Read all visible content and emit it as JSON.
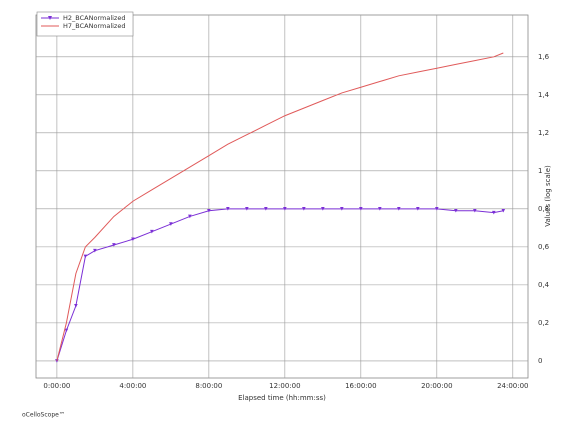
{
  "chart_data": {
    "type": "line",
    "xlabel": "Elapsed time (hh:mm:ss)",
    "ylabel": "Values (log scale)",
    "footer": "oCelloScope™",
    "x": [
      0,
      0.5,
      1,
      1.5,
      2,
      3,
      4,
      5,
      6,
      7,
      8,
      9,
      10,
      11,
      12,
      13,
      14,
      15,
      16,
      17,
      18,
      19,
      20,
      21,
      22,
      23,
      23.5
    ],
    "series": [
      {
        "name": "H2_BCANormalized",
        "color": "#7b2fd6",
        "marker": "triangle-down",
        "values": [
          0,
          0.16,
          0.29,
          0.55,
          0.58,
          0.61,
          0.64,
          0.68,
          0.72,
          0.76,
          0.79,
          0.8,
          0.8,
          0.8,
          0.8,
          0.8,
          0.8,
          0.8,
          0.8,
          0.8,
          0.8,
          0.8,
          0.8,
          0.79,
          0.79,
          0.78,
          0.79
        ]
      },
      {
        "name": "H7_BCANormalized",
        "color": "#e05a5a",
        "marker": "none",
        "values": [
          0,
          0.2,
          0.46,
          0.6,
          0.65,
          0.76,
          0.84,
          0.9,
          0.96,
          1.02,
          1.08,
          1.14,
          1.19,
          1.24,
          1.29,
          1.33,
          1.37,
          1.41,
          1.44,
          1.47,
          1.5,
          1.52,
          1.54,
          1.56,
          1.58,
          1.6,
          1.62
        ]
      }
    ],
    "xlim": [
      -1.1,
      24.8
    ],
    "xticks": [
      {
        "value": 0,
        "label": "0:00:00"
      },
      {
        "value": 4,
        "label": "4:00:00"
      },
      {
        "value": 8,
        "label": "8:00:00"
      },
      {
        "value": 12,
        "label": "12:00:00"
      },
      {
        "value": 16,
        "label": "16:00:00"
      },
      {
        "value": 20,
        "label": "20:00:00"
      },
      {
        "value": 24,
        "label": "24:00:00"
      }
    ],
    "ylim": [
      -0.09,
      1.82
    ],
    "yticks": [
      0,
      {
        "value": 0.2,
        "label": "0,2"
      },
      {
        "value": 0.4,
        "label": "0,4"
      },
      {
        "value": 0.6,
        "label": "0,6"
      },
      {
        "value": 0.8,
        "label": "0,8"
      },
      1,
      {
        "value": 1.2,
        "label": "1,2"
      },
      {
        "value": 1.4,
        "label": "1,4"
      },
      {
        "value": 1.6,
        "label": "1,6"
      }
    ],
    "grid": true,
    "legend": "top-left"
  }
}
